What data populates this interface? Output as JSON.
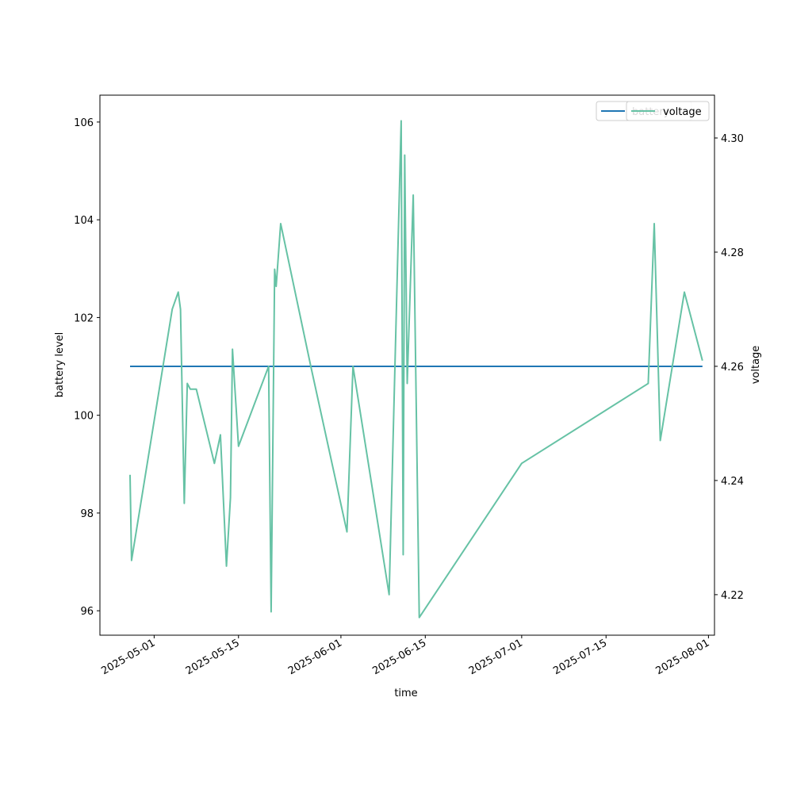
{
  "chart_data": {
    "type": "line",
    "xlabel": "time",
    "y_left": {
      "label": "battery level",
      "ylim": [
        95.5,
        106.55
      ],
      "ticks": [
        96,
        98,
        100,
        102,
        104,
        106
      ]
    },
    "y_right": {
      "label": "voltage",
      "ylim": [
        4.2129,
        4.3075
      ],
      "ticks": [
        "4.22",
        "4.24",
        "4.26",
        "4.28",
        "4.30"
      ]
    },
    "x_ticks": [
      "2025-05-01",
      "2025-05-15",
      "2025-06-01",
      "2025-06-15",
      "2025-07-01",
      "2025-07-15",
      "2025-08-01"
    ],
    "xlim": [
      "2025-04-22",
      "2025-08-02"
    ],
    "grid": false,
    "legends": [
      {
        "placement": "top-right",
        "entries": [
          "battery"
        ]
      },
      {
        "placement": "top-right",
        "entries": [
          "voltage"
        ]
      }
    ],
    "colors": {
      "battery": "#1f77b4",
      "voltage": "#66c2a5"
    },
    "series": [
      {
        "name": "battery",
        "axis": "left",
        "x": [
          "2025-04-27",
          "2025-07-31"
        ],
        "values": [
          101,
          101
        ]
      },
      {
        "name": "voltage",
        "axis": "right",
        "x": [
          "2025-04-27",
          "2025-04-27 06:00",
          "2025-05-04",
          "2025-05-05",
          "2025-05-05 09:00",
          "2025-05-06",
          "2025-05-06 12:00",
          "2025-05-07",
          "2025-05-08",
          "2025-05-11",
          "2025-05-12",
          "2025-05-13",
          "2025-05-13 16:00",
          "2025-05-14",
          "2025-05-15",
          "2025-05-20",
          "2025-05-20 10:00",
          "2025-05-21",
          "2025-05-21 06:00",
          "2025-05-22",
          "2025-05-27",
          "2025-06-02",
          "2025-06-03",
          "2025-06-09",
          "2025-06-11",
          "2025-06-11 08:00",
          "2025-06-11 14:00",
          "2025-06-12",
          "2025-06-13",
          "2025-06-14",
          "2025-07-01",
          "2025-07-22",
          "2025-07-23",
          "2025-07-24",
          "2025-07-28",
          "2025-07-31"
        ],
        "values": [
          4.241,
          4.226,
          4.27,
          4.273,
          4.27,
          4.236,
          4.257,
          4.256,
          4.256,
          4.243,
          4.248,
          4.225,
          4.237,
          4.263,
          4.246,
          4.26,
          4.217,
          4.277,
          4.274,
          4.285,
          4.26,
          4.231,
          4.26,
          4.22,
          4.303,
          4.227,
          4.297,
          4.257,
          4.29,
          4.216,
          4.243,
          4.257,
          4.285,
          4.247,
          4.273,
          4.261
        ]
      }
    ]
  }
}
